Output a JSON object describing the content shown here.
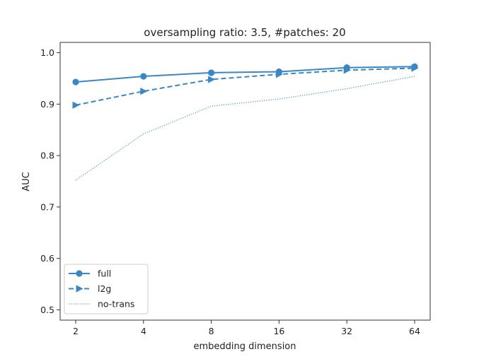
{
  "chart_data": {
    "type": "line",
    "title": "oversampling ratio: 3.5, #patches: 20",
    "xlabel": "embedding dimension",
    "ylabel": "AUC",
    "x_scale": "log2",
    "categories": [
      "2",
      "4",
      "8",
      "16",
      "32",
      "64"
    ],
    "x": [
      2,
      4,
      8,
      16,
      32,
      64
    ],
    "ylim": [
      0.48,
      1.02
    ],
    "yticks": [
      "0.5",
      "0.6",
      "0.7",
      "0.8",
      "0.9",
      "1.0"
    ],
    "ytick_values": [
      0.5,
      0.6,
      0.7,
      0.8,
      0.9,
      1.0
    ],
    "grid": false,
    "legend_position": "lower-left",
    "series": [
      {
        "name": "full",
        "values": [
          0.943,
          0.954,
          0.961,
          0.963,
          0.971,
          0.973
        ],
        "marker": "circle",
        "line": "solid",
        "color": "#3a87c4"
      },
      {
        "name": "l2g",
        "values": [
          0.898,
          0.925,
          0.948,
          0.958,
          0.966,
          0.97
        ],
        "marker": "triangle-right",
        "line": "dashed",
        "color": "#3a87c4"
      },
      {
        "name": "no-trans",
        "values": [
          0.752,
          0.842,
          0.896,
          0.91,
          0.93,
          0.954
        ],
        "marker": "none",
        "line": "dotted",
        "color": "#3a87c4"
      }
    ]
  }
}
